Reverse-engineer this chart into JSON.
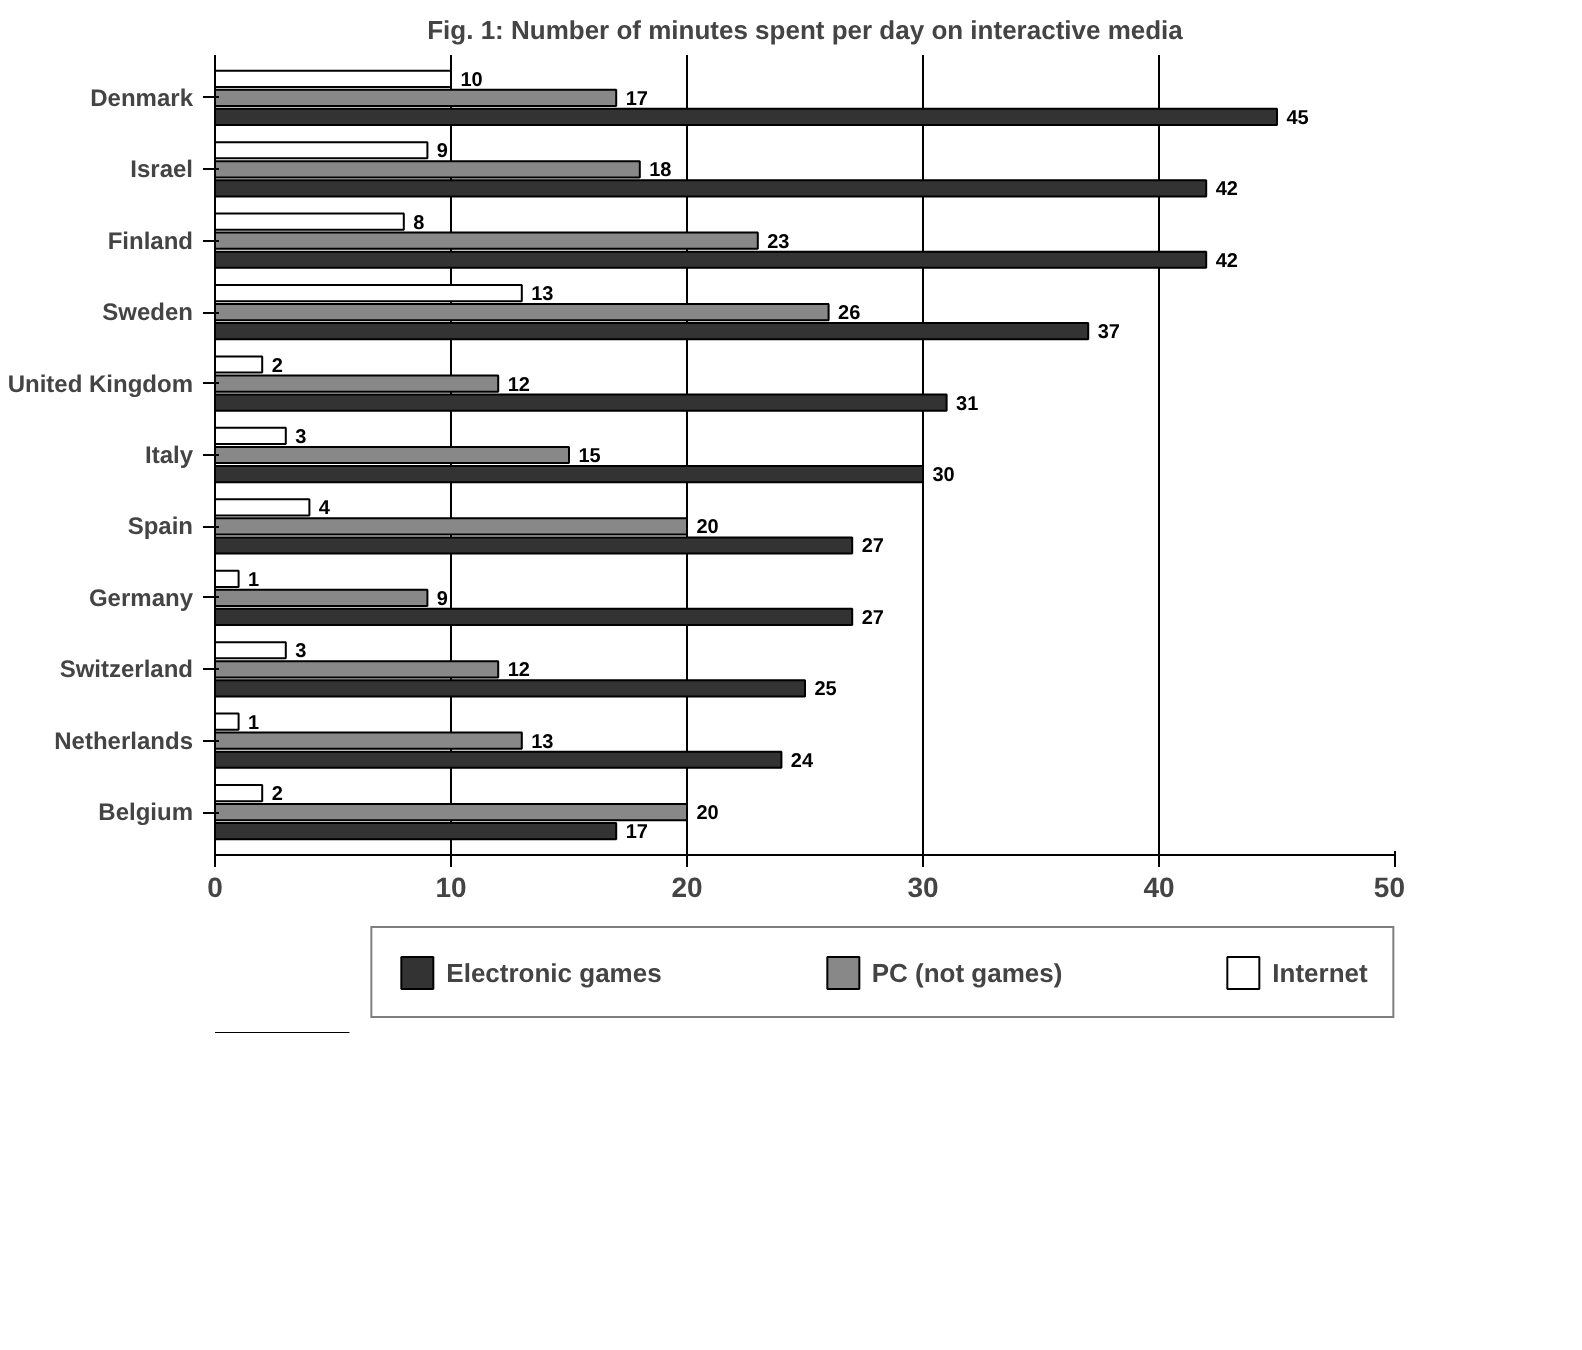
{
  "chart_data": {
    "type": "bar",
    "orientation": "horizontal",
    "title": "Fig. 1: Number of minutes spent per day on interactive media",
    "categories": [
      "Denmark",
      "Israel",
      "Finland",
      "Sweden",
      "United Kingdom",
      "Italy",
      "Spain",
      "Germany",
      "Switzerland",
      "Netherlands",
      "Belgium"
    ],
    "series": [
      {
        "name": "Electronic games",
        "color": "#333333",
        "values": [
          45,
          42,
          42,
          37,
          31,
          30,
          27,
          27,
          25,
          24,
          17
        ]
      },
      {
        "name": "PC (not games)",
        "color": "#888888",
        "values": [
          17,
          18,
          23,
          26,
          12,
          15,
          20,
          9,
          12,
          13,
          20
        ]
      },
      {
        "name": "Internet",
        "color": "#ffffff",
        "values": [
          10,
          9,
          8,
          13,
          2,
          3,
          4,
          1,
          3,
          1,
          2
        ]
      }
    ],
    "xlim": [
      0,
      50
    ],
    "xticks": [
      0,
      10,
      20,
      30,
      40,
      50
    ],
    "grid": "x",
    "legend": "bottom",
    "data_labels": true
  }
}
